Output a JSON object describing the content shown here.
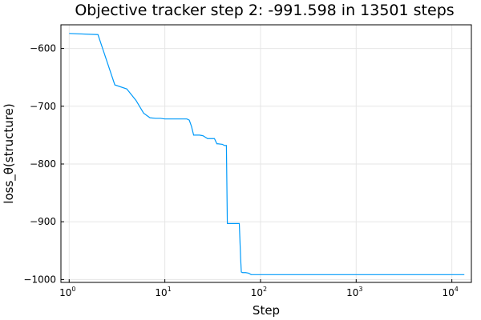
{
  "chart_data": {
    "type": "line",
    "title": "Objective tracker step 2: -991.598 in 13501 steps",
    "xlabel": "Step",
    "ylabel": "loss_θ(structure)",
    "xscale": "log10",
    "xlim": [
      0.82,
      16000
    ],
    "ylim": [
      -1005,
      -559
    ],
    "grid": true,
    "legend": "none",
    "x_ticks": [
      {
        "value": 1,
        "base": "10",
        "exp": "0"
      },
      {
        "value": 10,
        "base": "10",
        "exp": "1"
      },
      {
        "value": 100,
        "base": "10",
        "exp": "2"
      },
      {
        "value": 1000,
        "base": "10",
        "exp": "3"
      },
      {
        "value": 10000,
        "base": "10",
        "exp": "4"
      }
    ],
    "y_ticks": [
      {
        "value": -600,
        "label": "−600"
      },
      {
        "value": -700,
        "label": "−700"
      },
      {
        "value": -800,
        "label": "−800"
      },
      {
        "value": -900,
        "label": "−900"
      },
      {
        "value": -1000,
        "label": "−1000"
      }
    ],
    "series": [
      {
        "color": "#009AFA",
        "x": [
          1,
          2,
          3,
          4,
          5,
          6,
          7,
          8,
          9,
          10,
          12,
          15,
          17,
          18,
          19,
          20,
          22,
          23,
          25,
          28,
          30,
          31,
          33,
          35,
          36,
          40,
          42,
          44,
          45,
          48,
          55,
          60,
          62,
          63,
          65,
          70,
          75,
          80,
          90,
          100,
          1000,
          13501
        ],
        "y": [
          -574,
          -576,
          -663,
          -670,
          -690,
          -712,
          -720,
          -721,
          -721,
          -722,
          -722,
          -722,
          -722,
          -724,
          -735,
          -750,
          -750,
          -750,
          -751,
          -756,
          -756,
          -756,
          -756,
          -765,
          -765,
          -766,
          -768,
          -768,
          -903,
          -903,
          -903,
          -903,
          -964,
          -987,
          -988,
          -988,
          -989,
          -991.6,
          -991.6,
          -991.6,
          -991.6,
          -991.6
        ]
      }
    ]
  }
}
